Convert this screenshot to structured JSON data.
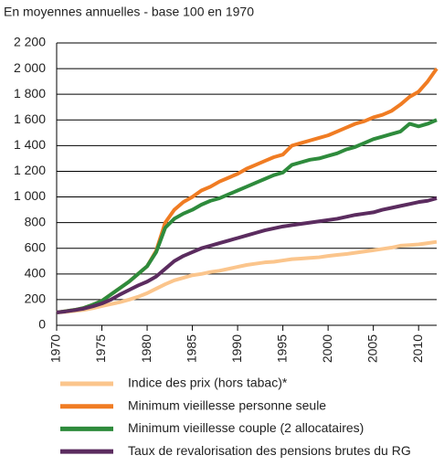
{
  "chart_data": {
    "type": "line",
    "title": "En moyennes annuelles - base 100 en 1970",
    "x": [
      1970,
      1971,
      1972,
      1973,
      1974,
      1975,
      1976,
      1977,
      1978,
      1979,
      1980,
      1981,
      1982,
      1983,
      1984,
      1985,
      1986,
      1987,
      1988,
      1989,
      1990,
      1991,
      1992,
      1993,
      1994,
      1995,
      1996,
      1997,
      1998,
      1999,
      2000,
      2001,
      2002,
      2003,
      2004,
      2005,
      2006,
      2007,
      2008,
      2009,
      2010,
      2011,
      2012
    ],
    "series": [
      {
        "name": "Indice des prix (hors tabac)*",
        "color": "#fbc58c",
        "values": [
          100,
          105,
          112,
          120,
          133,
          150,
          165,
          180,
          200,
          222,
          250,
          285,
          320,
          350,
          370,
          390,
          400,
          415,
          425,
          440,
          455,
          470,
          480,
          490,
          495,
          505,
          515,
          520,
          525,
          530,
          540,
          548,
          555,
          565,
          575,
          585,
          595,
          605,
          620,
          625,
          630,
          640,
          650
        ]
      },
      {
        "name": "Minimum vieillesse personne seule",
        "color": "#f07c23",
        "values": [
          100,
          110,
          120,
          135,
          160,
          190,
          240,
          290,
          340,
          400,
          460,
          580,
          800,
          900,
          960,
          1000,
          1050,
          1080,
          1120,
          1150,
          1180,
          1220,
          1250,
          1280,
          1310,
          1330,
          1400,
          1420,
          1440,
          1460,
          1480,
          1510,
          1540,
          1570,
          1590,
          1620,
          1640,
          1670,
          1720,
          1780,
          1820,
          1900,
          2000
        ]
      },
      {
        "name": "Minimum vieillesse couple (2 allocataires)",
        "color": "#2e8b3c",
        "values": [
          100,
          110,
          120,
          135,
          160,
          190,
          240,
          290,
          340,
          400,
          460,
          570,
          760,
          830,
          870,
          900,
          940,
          970,
          990,
          1020,
          1050,
          1080,
          1110,
          1140,
          1170,
          1190,
          1250,
          1270,
          1290,
          1300,
          1320,
          1340,
          1370,
          1390,
          1420,
          1450,
          1470,
          1490,
          1510,
          1570,
          1550,
          1570,
          1600
        ]
      },
      {
        "name": "Taux de revalorisation des pensions brutes du RG",
        "color": "#5b2c5f",
        "values": [
          100,
          108,
          118,
          130,
          148,
          170,
          200,
          240,
          275,
          310,
          340,
          380,
          440,
          500,
          540,
          570,
          600,
          620,
          640,
          660,
          680,
          700,
          720,
          740,
          755,
          770,
          780,
          790,
          800,
          810,
          820,
          830,
          845,
          860,
          870,
          880,
          900,
          915,
          930,
          945,
          960,
          970,
          990
        ]
      }
    ],
    "xlim": [
      1970,
      2012
    ],
    "xticks": [
      1970,
      1975,
      1980,
      1985,
      1990,
      1995,
      2000,
      2005,
      2010
    ],
    "ylim": [
      0,
      2200
    ],
    "yticks": [
      0,
      200,
      400,
      600,
      800,
      {
        "value": 1000,
        "label": "1 000"
      },
      {
        "value": 1200,
        "label": "1 200"
      },
      {
        "value": 1400,
        "label": "1 400"
      },
      {
        "value": 1600,
        "label": "1 600"
      },
      {
        "value": 1800,
        "label": "1 800"
      },
      {
        "value": 2000,
        "label": "2 000"
      },
      {
        "value": 2200,
        "label": "2 200"
      }
    ],
    "grid": true
  }
}
